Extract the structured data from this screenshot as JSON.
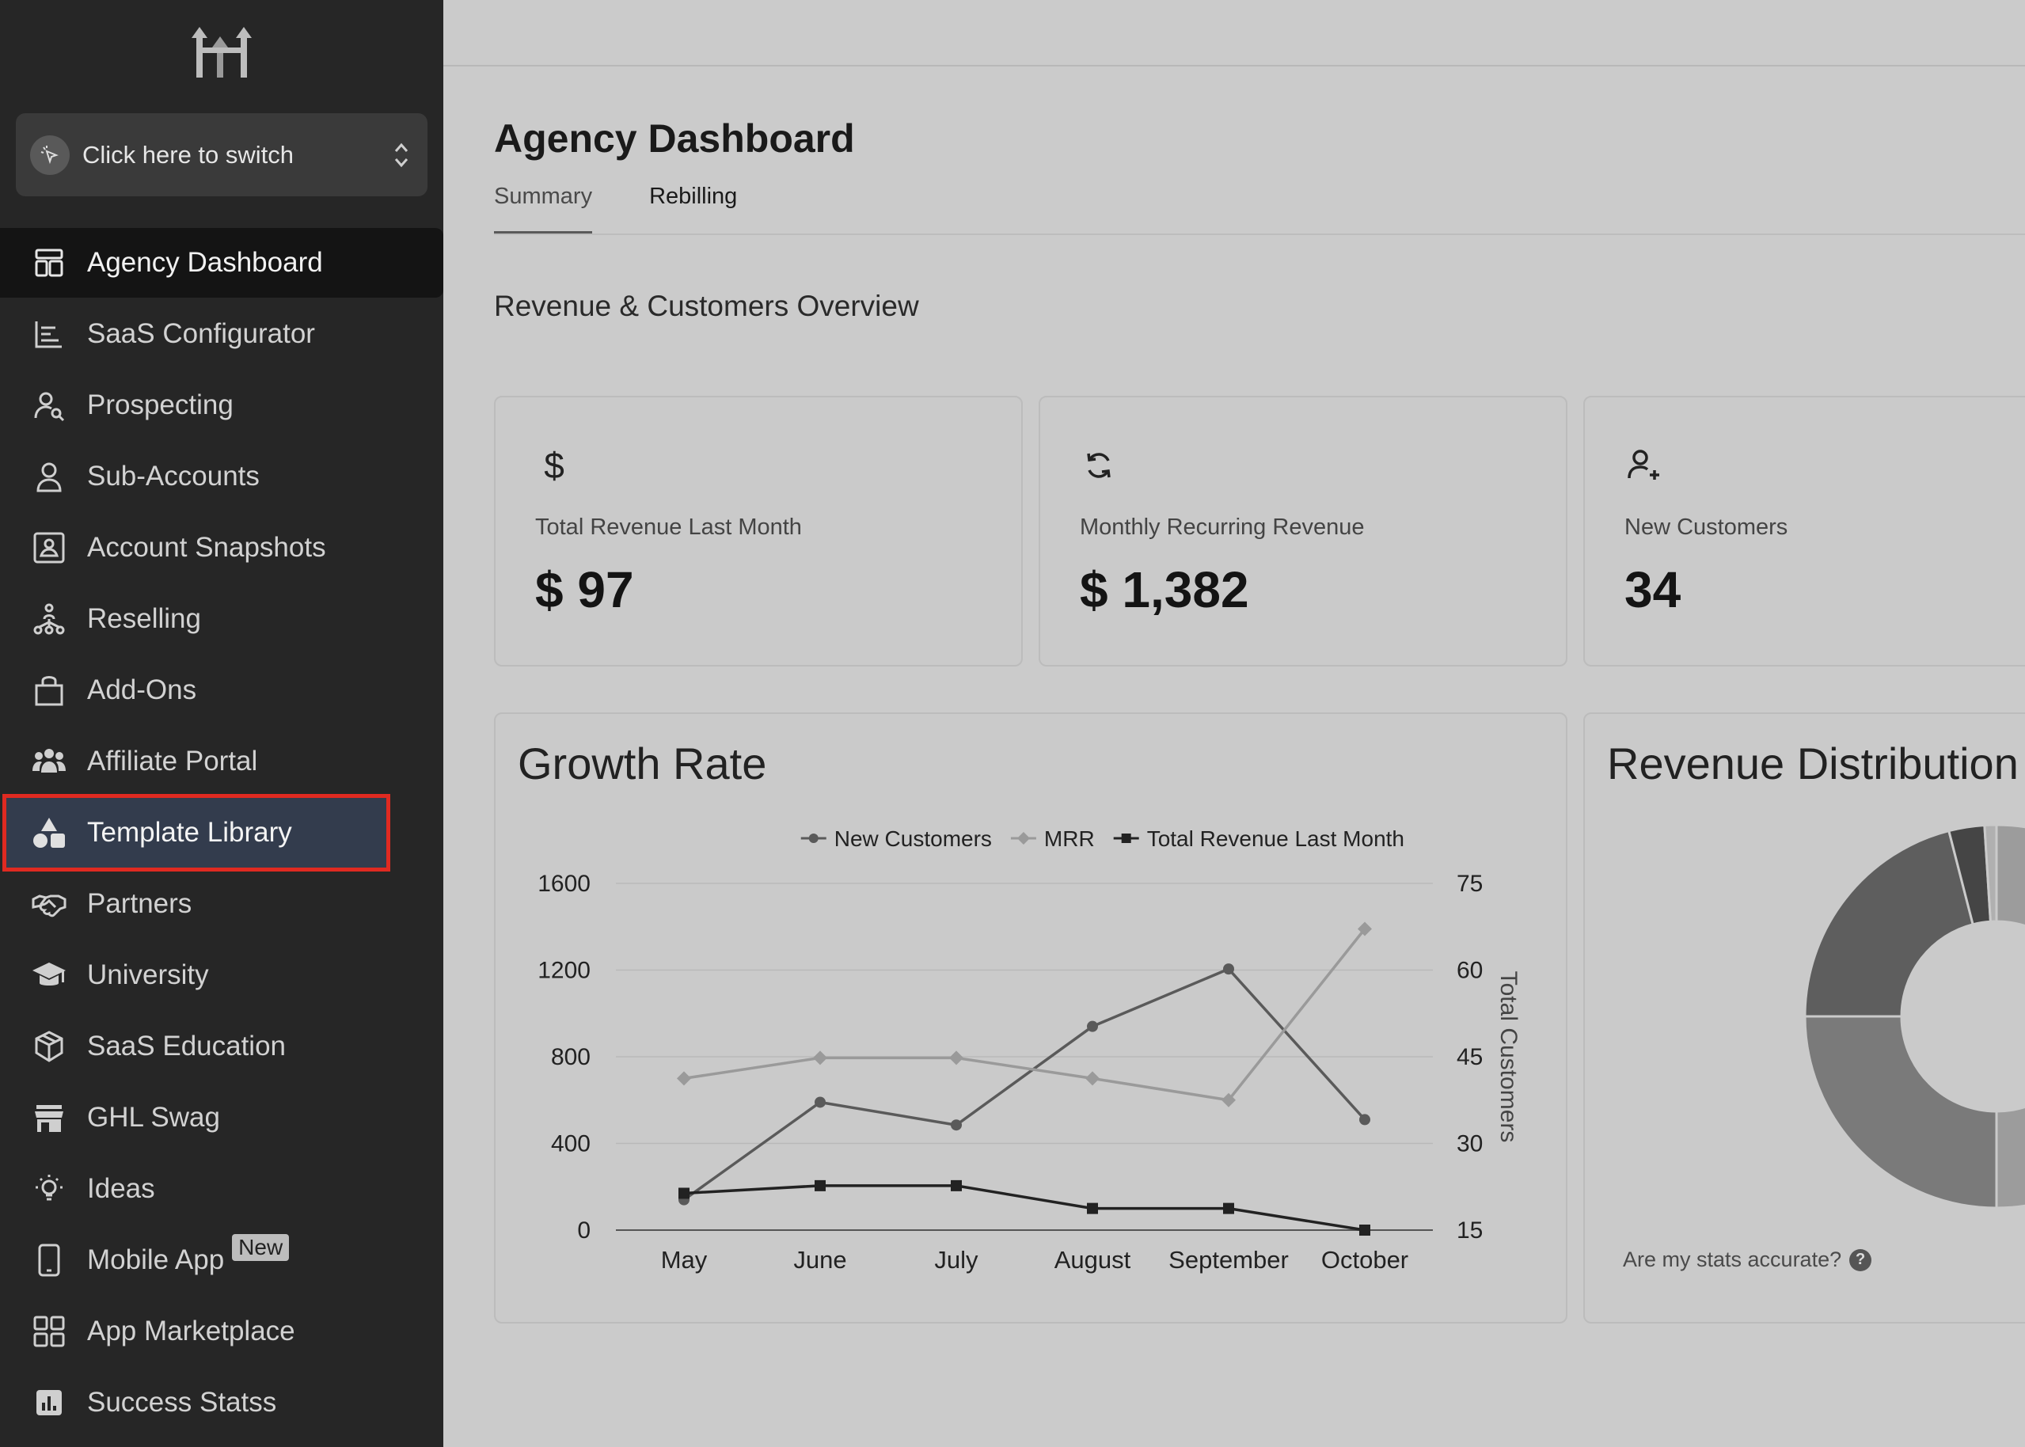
{
  "switcher": {
    "label": "Click here to switch"
  },
  "sidebar": {
    "items": [
      {
        "label": "Agency Dashboard",
        "icon": "dashboard-icon"
      },
      {
        "label": "SaaS Configurator",
        "icon": "bar-list-icon"
      },
      {
        "label": "Prospecting",
        "icon": "user-search-icon"
      },
      {
        "label": "Sub-Accounts",
        "icon": "user-icon"
      },
      {
        "label": "Account Snapshots",
        "icon": "portrait-icon"
      },
      {
        "label": "Reselling",
        "icon": "network-icon"
      },
      {
        "label": "Add-Ons",
        "icon": "bag-icon"
      },
      {
        "label": "Affiliate Portal",
        "icon": "users-group-icon"
      },
      {
        "label": "Template Library",
        "icon": "shapes-icon"
      },
      {
        "label": "Partners",
        "icon": "handshake-icon"
      },
      {
        "label": "University",
        "icon": "graduation-cap-icon"
      },
      {
        "label": "SaaS Education",
        "icon": "box-icon"
      },
      {
        "label": "GHL Swag",
        "icon": "store-icon"
      },
      {
        "label": "Ideas",
        "icon": "lightbulb-icon"
      },
      {
        "label": "Mobile App",
        "icon": "phone-icon",
        "badge": "New"
      },
      {
        "label": "App Marketplace",
        "icon": "grid-icon"
      },
      {
        "label": "Success Statss",
        "icon": "stats-icon"
      }
    ]
  },
  "header": {
    "title": "Agency Dashboard",
    "tabs": [
      {
        "label": "Summary"
      },
      {
        "label": "Rebilling"
      }
    ]
  },
  "main": {
    "section_title": "Revenue & Customers Overview",
    "stats": [
      {
        "label": "Total Revenue Last Month",
        "value": "$ 97",
        "icon": "dollar-icon"
      },
      {
        "label": "Monthly Recurring Revenue",
        "value": "$ 1,382",
        "icon": "refresh-icon"
      },
      {
        "label": "New Customers",
        "value": "34",
        "icon": "user-add-icon"
      }
    ],
    "growth_title": "Growth Rate",
    "distribution_title": "Revenue Distribution",
    "accuracy_text": "Are my stats accurate?",
    "accuracy_help": "?"
  },
  "colors": {
    "sidebar_bg": "#262626",
    "highlight_outline": "#e02a21",
    "highlight_bg": "#333c4d",
    "series_new_customers": "#5a5a5a",
    "series_mrr": "#9a9a9a",
    "series_total_revenue": "#222222"
  },
  "chart_data": [
    {
      "type": "line",
      "title": "Growth Rate",
      "categories": [
        "May",
        "June",
        "July",
        "August",
        "September",
        "October"
      ],
      "left_axis": {
        "ticks": [
          "0",
          "400",
          "800",
          "1200",
          "1600"
        ],
        "ylim": [
          0,
          1600
        ]
      },
      "right_axis": {
        "label": "Total Customers",
        "ticks": [
          "15",
          "30",
          "45",
          "60",
          "75"
        ],
        "ylim": [
          15,
          75
        ]
      },
      "legend_position": "top-right",
      "series": [
        {
          "name": "New Customers",
          "axis": "left",
          "marker": "circle",
          "values": [
            140,
            590,
            485,
            940,
            1205,
            510
          ]
        },
        {
          "name": "MRR",
          "axis": "left",
          "marker": "diamond",
          "values": [
            700,
            795,
            795,
            700,
            600,
            1390
          ]
        },
        {
          "name": "Total Revenue Last Month",
          "axis": "left",
          "marker": "square",
          "values": [
            170,
            205,
            205,
            100,
            100,
            0
          ]
        }
      ]
    },
    {
      "type": "pie",
      "variant": "donut",
      "title": "Revenue Distribution",
      "slices": [
        {
          "value": 50,
          "color": "#9c9c9c"
        },
        {
          "value": 25,
          "color": "#7a7a7a"
        },
        {
          "value": 21,
          "color": "#5e5e5e"
        },
        {
          "value": 3,
          "color": "#454545"
        },
        {
          "value": 1,
          "color": "#b0b0b0"
        }
      ]
    }
  ]
}
